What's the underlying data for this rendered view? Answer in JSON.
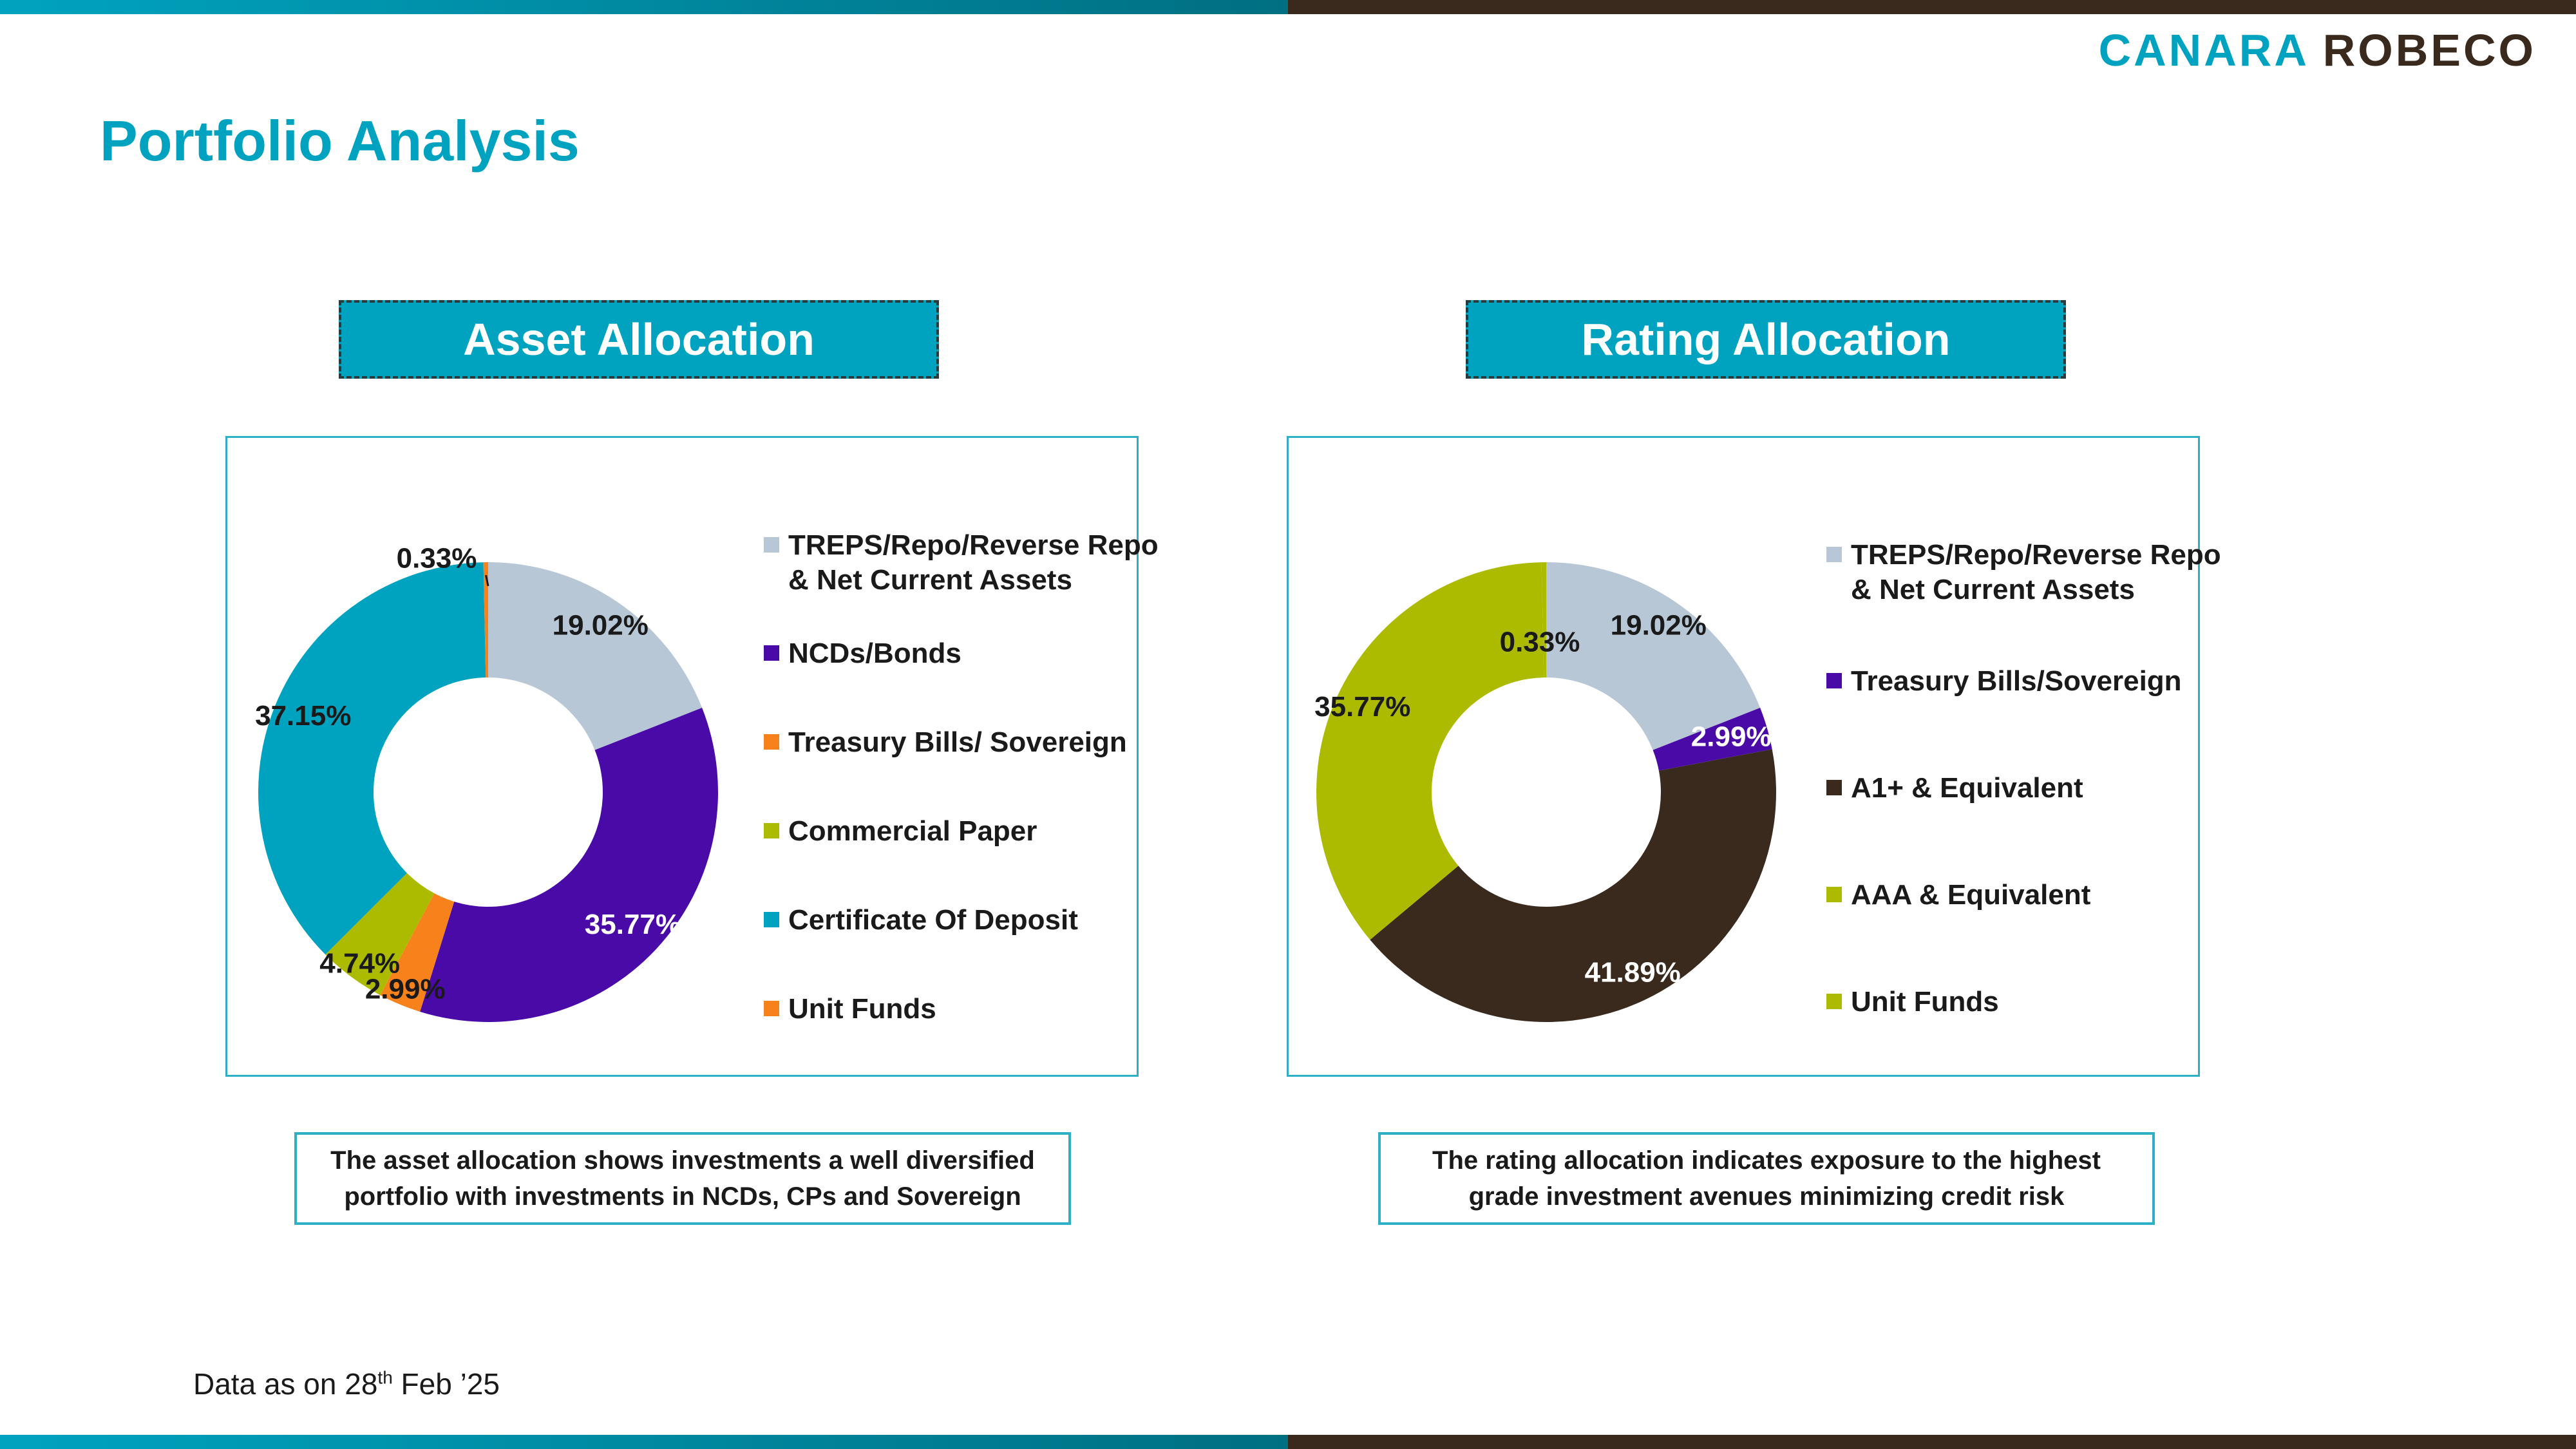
{
  "header": {
    "logo_part1": "CANARA",
    "logo_part2": "ROBECO",
    "page_title": "Portfolio Analysis"
  },
  "colors": {
    "accent": "#00a3bf",
    "dark_brown": "#3a2a1e",
    "treps": "#b8c7d6",
    "ncd": "#4a0aa8",
    "tbill": "#f7821b",
    "cp": "#adbb00",
    "cd": "#00a3bf"
  },
  "asset_section": {
    "heading": "Asset  Allocation",
    "note": "The asset allocation shows investments a well diversified portfolio with investments in NCDs, CPs and Sovereign",
    "legend": [
      {
        "line1": "TREPS/Repo/Reverse Repo",
        "line2": "& Net Current Assets",
        "color": "#b8c7d6"
      },
      {
        "line1": "NCDs/Bonds",
        "line2": "",
        "color": "#4a0aa8"
      },
      {
        "line1": "Treasury Bills/ Sovereign",
        "line2": "",
        "color": "#f7821b"
      },
      {
        "line1": "Commercial Paper",
        "line2": "",
        "color": "#adbb00"
      },
      {
        "line1": "Certificate Of Deposit",
        "line2": "",
        "color": "#00a3bf"
      },
      {
        "line1": "Unit Funds",
        "line2": "",
        "color": "#f7821b"
      }
    ]
  },
  "rating_section": {
    "heading": "Rating Allocation",
    "note": "The rating allocation indicates exposure to the highest grade investment avenues minimizing credit risk",
    "legend": [
      {
        "line1": "TREPS/Repo/Reverse Repo",
        "line2": "& Net Current Assets",
        "color": "#b8c7d6"
      },
      {
        "line1": "Treasury Bills/Sovereign",
        "line2": "",
        "color": "#4a0aa8"
      },
      {
        "line1": "A1+ & Equivalent",
        "line2": "",
        "color": "#3a2a1e"
      },
      {
        "line1": "AAA & Equivalent",
        "line2": "",
        "color": "#adbb00"
      },
      {
        "line1": "Unit Funds",
        "line2": "",
        "color": "#adbb00"
      }
    ]
  },
  "footer": {
    "prefix": "Data as on 28",
    "sup": "th",
    "suffix": " Feb  ’25"
  },
  "chart_data": [
    {
      "type": "pie",
      "donut": true,
      "title": "Asset  Allocation",
      "categories": [
        "TREPS/Repo/Reverse Repo & Net Current Assets",
        "NCDs/Bonds",
        "Treasury Bills/ Sovereign",
        "Commercial Paper",
        "Certificate Of Deposit",
        "Unit Funds"
      ],
      "values": [
        19.02,
        35.77,
        2.99,
        4.74,
        37.15,
        0.33
      ],
      "labels": [
        "19.02%",
        "35.77%",
        "2.99%",
        "4.74%",
        "37.15%",
        "0.33%"
      ],
      "colors": [
        "#b8c7d6",
        "#4a0aa8",
        "#f7821b",
        "#adbb00",
        "#00a3bf",
        "#f7821b"
      ],
      "label_colors": [
        "#1a1a1a",
        "#ffffff",
        "#1a1a1a",
        "#1a1a1a",
        "#1a1a1a",
        "#1a1a1a"
      ],
      "legend_position": "right"
    },
    {
      "type": "pie",
      "donut": true,
      "title": "Rating Allocation",
      "categories": [
        "TREPS/Repo/Reverse Repo & Net Current Assets",
        "Treasury Bills/Sovereign",
        "A1+ & Equivalent",
        "AAA & Equivalent",
        "Unit Funds"
      ],
      "values": [
        19.02,
        2.99,
        41.89,
        35.77,
        0.33
      ],
      "labels": [
        "19.02%",
        "2.99%",
        "41.89%",
        "35.77%",
        "0.33%"
      ],
      "colors": [
        "#b8c7d6",
        "#4a0aa8",
        "#3a2a1e",
        "#adbb00",
        "#adbb00"
      ],
      "label_colors": [
        "#1a1a1a",
        "#ffffff",
        "#ffffff",
        "#1a1a1a",
        "#1a1a1a"
      ],
      "legend_position": "right"
    }
  ]
}
